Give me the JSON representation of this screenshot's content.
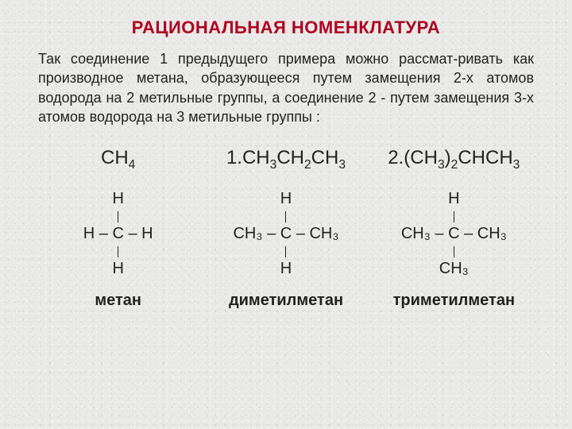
{
  "title": "РАЦИОНАЛЬНАЯ НОМЕНКЛАТУРА",
  "paragraph": "Так соединение 1 предыдущего примера можно рассмат-ривать как производное метана, образующееся путем замещения 2-х атомов водорода на 2 метильные группы, а соединение 2 - путем замещения 3-х атомов водорода на 3 метильные группы :",
  "colors": {
    "title": "#b00020",
    "text": "#222222",
    "background": "#e8e8e6"
  },
  "compounds": [
    {
      "formula_prefix": "",
      "formula_parts": [
        "CH",
        "4"
      ],
      "structure": {
        "top": "H",
        "mid_left": "H",
        "mid_center": "C",
        "mid_right": "H",
        "bottom": "H"
      },
      "label": "метан"
    },
    {
      "formula_prefix": "1.",
      "formula_parts": [
        "CH",
        "3",
        "CH",
        "2",
        "CH",
        "3"
      ],
      "structure": {
        "top": "H",
        "mid_left": "CH₃",
        "mid_center": "C",
        "mid_right": "CH₃",
        "bottom": "H"
      },
      "label": "диметилметан"
    },
    {
      "formula_prefix": "2.",
      "formula_parts": [
        "(CH",
        "3",
        ")",
        "2",
        "CHCH",
        "3"
      ],
      "structure": {
        "top": "H",
        "mid_left": "CH₃",
        "mid_center": "C",
        "mid_right": "CH₃",
        "bottom": "CH₃"
      },
      "label": "триметилметан"
    }
  ]
}
